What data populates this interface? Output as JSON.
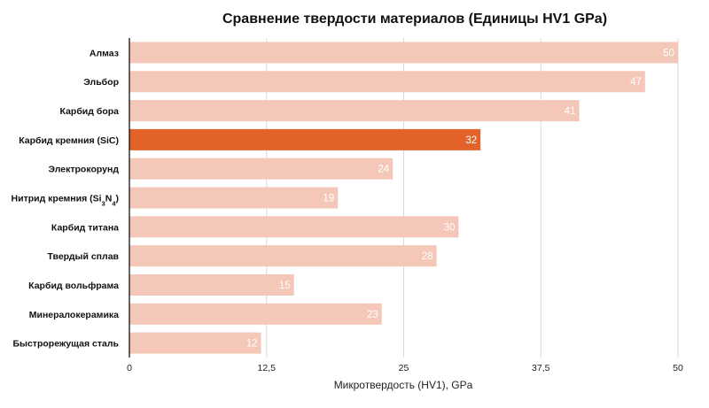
{
  "chart_data": {
    "type": "bar",
    "orientation": "horizontal",
    "title": "Сравнение твердости материалов (Единицы HV1 GPa)",
    "xlabel": "Микротвердость (HV1), GPa",
    "ylabel": "",
    "xlim": [
      0,
      50
    ],
    "xticks": [
      0,
      12.5,
      25,
      37.5,
      50
    ],
    "xtick_labels": [
      "0",
      "12,5",
      "25",
      "37,5",
      "50"
    ],
    "grid": true,
    "categories": [
      "Алмаз",
      "Эльбор",
      "Карбид бора",
      "Карбид кремния (SiC)",
      "Электрокорунд",
      "Нитрид кремния (Si3N4)",
      "Карбид титана",
      "Твердый сплав",
      "Карбид вольфрама",
      "Минералокерамика",
      "Быстрорежущая сталь"
    ],
    "values": [
      50,
      47,
      41,
      32,
      24,
      19,
      30,
      28,
      15,
      23,
      12
    ],
    "highlight_index": 3,
    "colors": {
      "bar": "#f4c7b8",
      "highlight": "#e2622a",
      "value_text": "#ffffff"
    }
  }
}
